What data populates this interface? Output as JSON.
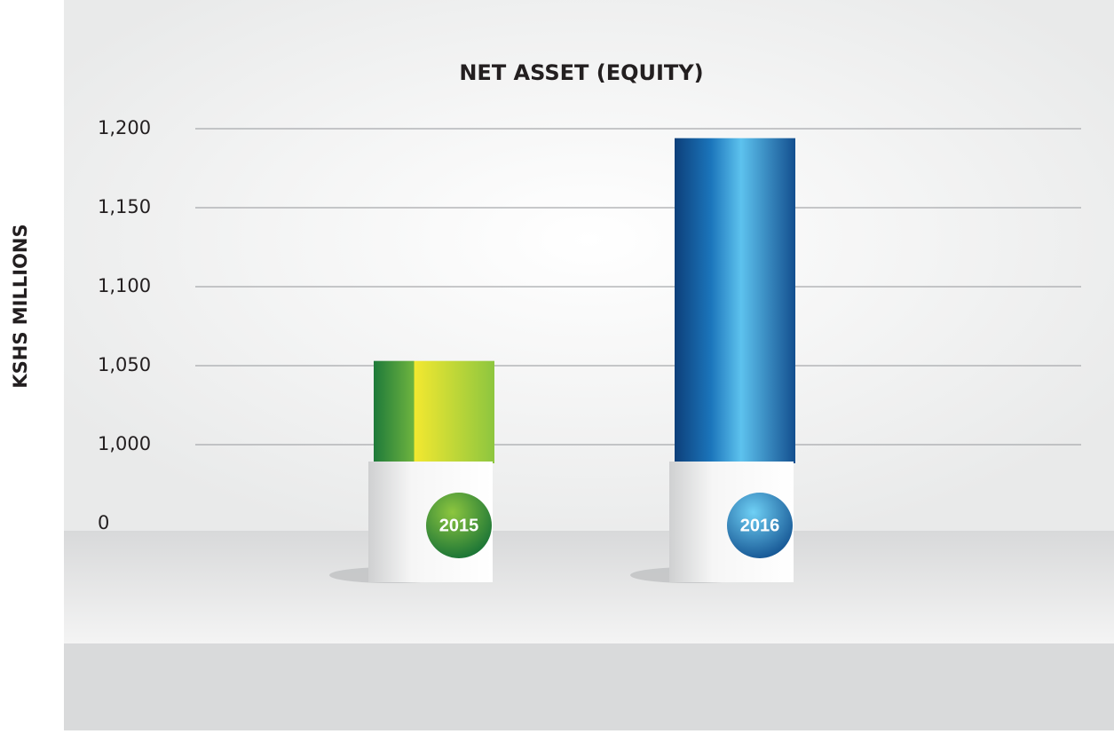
{
  "chart_data": {
    "type": "bar",
    "title": "NET ASSET (EQUITY)",
    "y_label": "KSHS MILLIONS",
    "categories": [
      "2015",
      "2016"
    ],
    "values": [
      1053,
      1194
    ],
    "colors": [
      "#8dc63f",
      "#1b75bb"
    ],
    "ylim": [
      0,
      1200
    ],
    "yticks": [
      0,
      {
        "value": 1000,
        "label": "1,000"
      },
      {
        "value": 1050,
        "label": "1,050"
      },
      {
        "value": 1100,
        "label": "1,100"
      },
      {
        "value": 1150,
        "label": "1,150"
      },
      {
        "value": 1200,
        "label": "1,200"
      }
    ],
    "grid": true
  }
}
